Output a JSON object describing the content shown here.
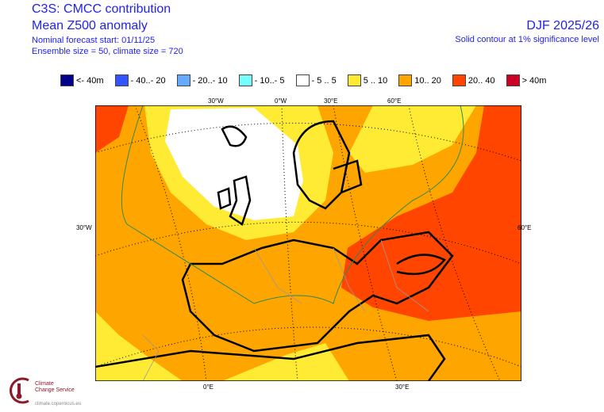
{
  "header": {
    "title": "C3S: CMCC contribution",
    "subtitle": "Mean Z500 anomaly",
    "forecast_start": "Nominal forecast start: 01/11/25",
    "ensemble": "Ensemble size = 50, climate size = 720",
    "season": "DJF 2025/26",
    "significance": "Solid contour at 1% significance level"
  },
  "legend": [
    {
      "label": "<- 40m",
      "color": "#00008B"
    },
    {
      "label": "- 40..- 20",
      "color": "#3355FF"
    },
    {
      "label": "- 20..- 10",
      "color": "#66AAFF"
    },
    {
      "label": "- 10..- 5",
      "color": "#77FFFF"
    },
    {
      "label": "- 5 .. 5",
      "color": "#FFFFFF"
    },
    {
      "label": "5 .. 10",
      "color": "#FFEB33"
    },
    {
      "label": "10.. 20",
      "color": "#FFA500"
    },
    {
      "label": "20.. 40",
      "color": "#FF4500"
    },
    {
      "label": ">  40m",
      "color": "#CC0022"
    }
  ],
  "grid_labels": {
    "top": [
      "30°W",
      "0°W",
      "30°E",
      "60°E"
    ],
    "left": "30°W",
    "right": "60°E",
    "bottom": [
      "0°E",
      "30°E"
    ]
  },
  "logo": {
    "name1": "Climate",
    "name2": "Change Service",
    "url": "climate.copernicus.eu"
  }
}
